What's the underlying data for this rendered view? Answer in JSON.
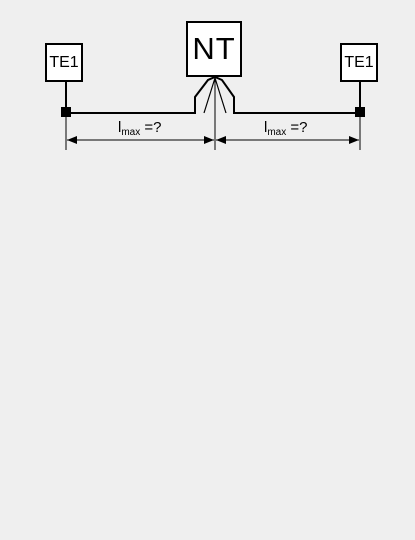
{
  "diagram": {
    "terminal_left": {
      "label": "TE1"
    },
    "network_terminal": {
      "label": "NT"
    },
    "terminal_right": {
      "label": "TE1"
    },
    "dimension_left": {
      "symbol": "l",
      "subscript": "max",
      "suffix": " =?"
    },
    "dimension_right": {
      "symbol": "l",
      "subscript": "max",
      "suffix": " =?"
    }
  }
}
